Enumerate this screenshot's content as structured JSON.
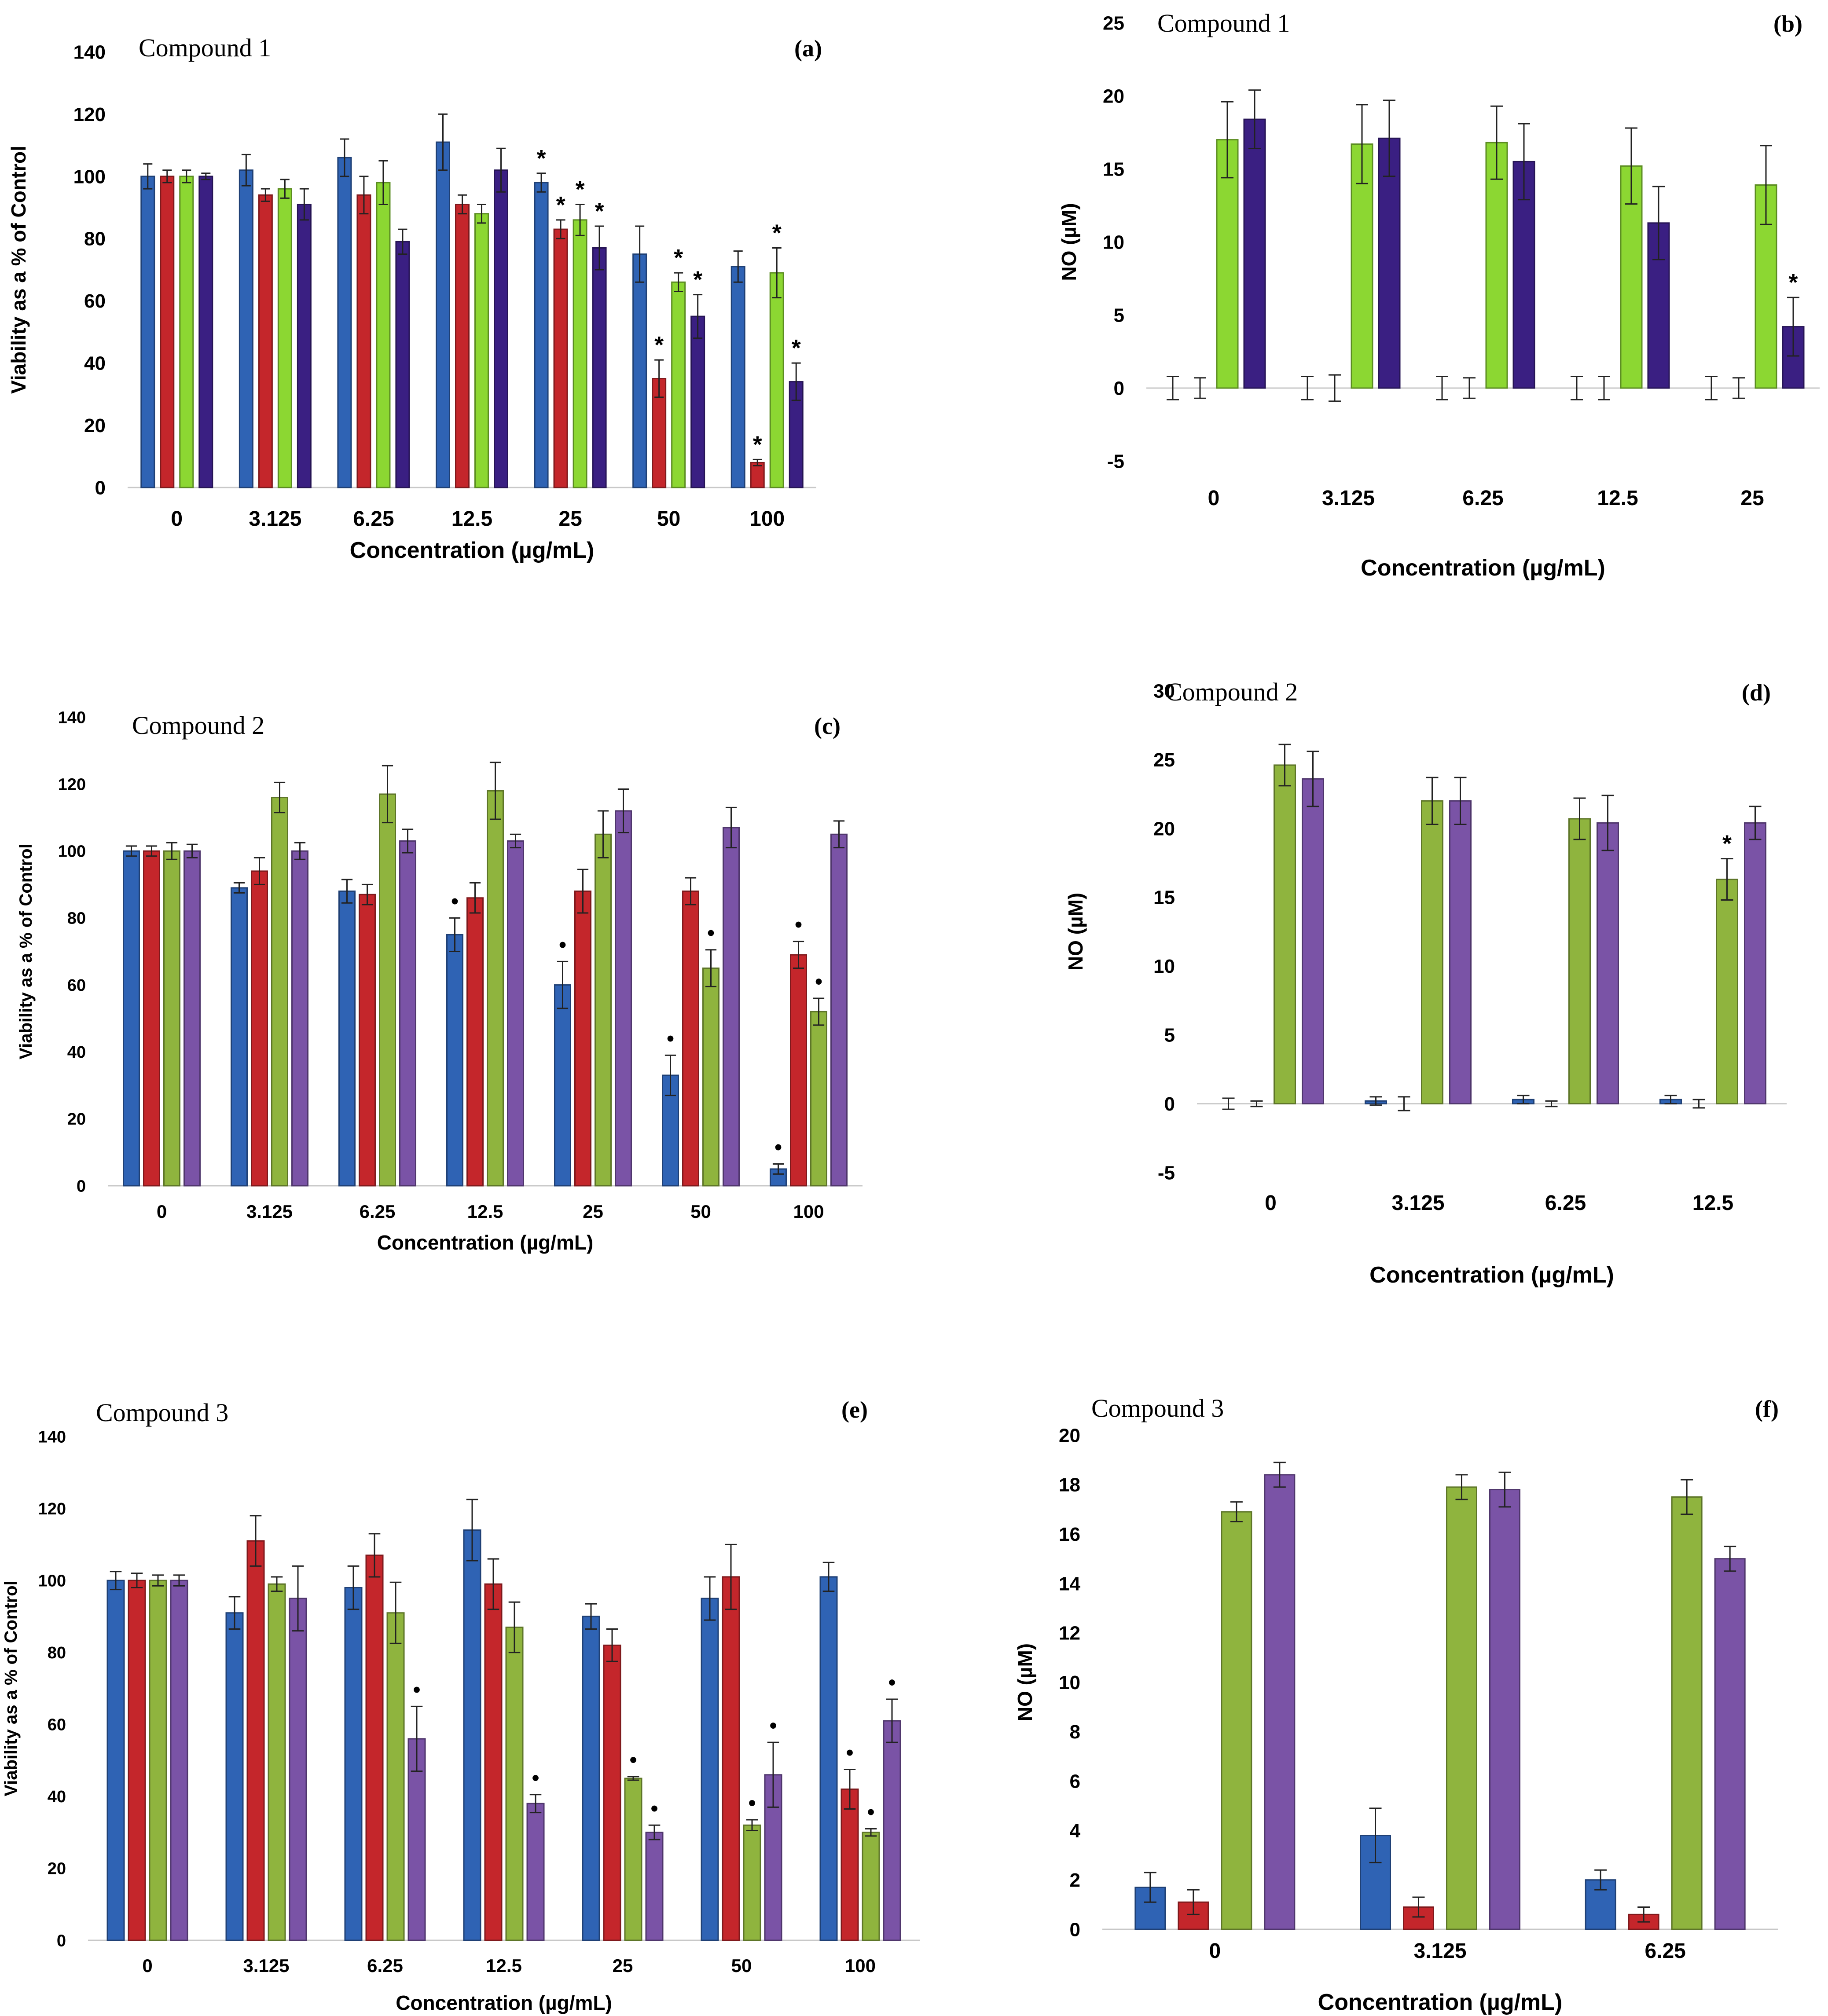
{
  "figure": {
    "colors": {
      "blue": "#2f63b4",
      "red": "#c4262b",
      "green_bright": "#8cd732",
      "green_olive": "#8fb43e",
      "purple_dark": "#3a1f82",
      "purple": "#7a53a6"
    }
  },
  "chart_data": [
    {
      "panel": "a",
      "type": "bar",
      "title": "Compound 1",
      "panel_label": "(a)",
      "xlabel": "Concentration (µg/mL)",
      "ylabel": "Viability as a % of Control",
      "ylim": [
        0,
        140
      ],
      "yticks": [
        "0",
        "20",
        "40",
        "60",
        "80",
        "100",
        "120",
        "140"
      ],
      "categories": [
        "0",
        "3.125",
        "6.25",
        "12.5",
        "25",
        "50",
        "100"
      ],
      "series": [
        {
          "name": "blue",
          "color": "#2f63b4",
          "values": [
            100,
            102,
            106,
            111,
            98,
            75,
            71
          ],
          "errors": [
            4,
            5,
            6,
            9,
            3,
            9,
            5
          ],
          "sig": [
            "",
            "",
            "",
            "",
            "*",
            "",
            ""
          ]
        },
        {
          "name": "red",
          "color": "#c4262b",
          "values": [
            100,
            94,
            94,
            91,
            83,
            35,
            8
          ],
          "errors": [
            2,
            2,
            6,
            3,
            3,
            6,
            1
          ],
          "sig": [
            "",
            "",
            "",
            "",
            "*",
            "*",
            "*"
          ]
        },
        {
          "name": "green",
          "color": "#8cd732",
          "values": [
            100,
            96,
            98,
            88,
            86,
            66,
            69
          ],
          "errors": [
            2,
            3,
            7,
            3,
            5,
            3,
            8
          ],
          "sig": [
            "",
            "",
            "",
            "",
            "*",
            "*",
            "*"
          ]
        },
        {
          "name": "purple",
          "color": "#3a1f82",
          "values": [
            100,
            91,
            79,
            102,
            77,
            55,
            34
          ],
          "errors": [
            1,
            5,
            4,
            7,
            7,
            7,
            6
          ],
          "sig": [
            "",
            "",
            "",
            "",
            "*",
            "*",
            "*"
          ]
        }
      ]
    },
    {
      "panel": "b",
      "type": "bar",
      "title": "Compound 1",
      "panel_label": "(b)",
      "xlabel": "Concentration (µg/mL)",
      "ylabel": "NO (µM)",
      "ylim": [
        -5,
        25
      ],
      "yticks": [
        "-5",
        "0",
        "5",
        "10",
        "15",
        "20",
        "25"
      ],
      "categories": [
        "0",
        "3.125",
        "6.25",
        "12.5",
        "25"
      ],
      "series": [
        {
          "name": "blue",
          "color": "#2f63b4",
          "values": [
            0,
            0,
            0,
            0,
            0
          ],
          "errors": [
            0.8,
            0.8,
            0.8,
            0.8,
            0.8
          ],
          "sig": [
            "",
            "",
            "",
            "",
            ""
          ]
        },
        {
          "name": "red",
          "color": "#c4262b",
          "values": [
            0,
            0,
            0,
            0,
            0
          ],
          "errors": [
            0.7,
            0.9,
            0.7,
            0.8,
            0.7
          ],
          "sig": [
            "",
            "",
            "",
            "",
            ""
          ]
        },
        {
          "name": "green",
          "color": "#8cd732",
          "values": [
            17,
            16.7,
            16.8,
            15.2,
            13.9
          ],
          "errors": [
            2.6,
            2.7,
            2.5,
            2.6,
            2.7
          ],
          "sig": [
            "",
            "",
            "",
            "",
            ""
          ]
        },
        {
          "name": "purple",
          "color": "#3a1f82",
          "values": [
            18.4,
            17.1,
            15.5,
            11.3,
            4.2
          ],
          "errors": [
            2,
            2.6,
            2.6,
            2.5,
            2
          ],
          "sig": [
            "",
            "",
            "",
            "",
            "*"
          ]
        }
      ]
    },
    {
      "panel": "c",
      "type": "bar",
      "title": "Compound 2",
      "panel_label": "(c)",
      "xlabel": "Concentration (µg/mL)",
      "ylabel": "Viability as a % of Control",
      "ylim": [
        0,
        140
      ],
      "yticks": [
        "0",
        "20",
        "40",
        "60",
        "80",
        "100",
        "120",
        "140"
      ],
      "categories": [
        "0",
        "3.125",
        "6.25",
        "12.5",
        "25",
        "50",
        "100"
      ],
      "series": [
        {
          "name": "blue",
          "color": "#2f63b4",
          "values": [
            100,
            89,
            88,
            75,
            60,
            33,
            5
          ],
          "errors": [
            1.5,
            1.5,
            3.5,
            5,
            7,
            6,
            1.5
          ],
          "sig": [
            "",
            "",
            "",
            "•",
            "•",
            "•",
            "•"
          ]
        },
        {
          "name": "red",
          "color": "#c4262b",
          "values": [
            100,
            94,
            87,
            86,
            88,
            88,
            69
          ],
          "errors": [
            1.5,
            4,
            3,
            4.5,
            6.5,
            4,
            4
          ],
          "sig": [
            "",
            "",
            "",
            "",
            "",
            "",
            "•"
          ]
        },
        {
          "name": "green",
          "color": "#8fb43e",
          "values": [
            100,
            116,
            117,
            118,
            105,
            65,
            52
          ],
          "errors": [
            2.5,
            4.5,
            8.5,
            8.5,
            7,
            5.5,
            4
          ],
          "sig": [
            "",
            "",
            "",
            "",
            "",
            "•",
            "•"
          ]
        },
        {
          "name": "purple",
          "color": "#7a53a6",
          "values": [
            100,
            100,
            103,
            103,
            112,
            107,
            105
          ],
          "errors": [
            2,
            2.5,
            3.5,
            2,
            6.5,
            6,
            4
          ],
          "sig": [
            "",
            "",
            "",
            "",
            "",
            "",
            ""
          ]
        }
      ]
    },
    {
      "panel": "d",
      "type": "bar",
      "title": "Compound 2",
      "panel_label": "(d)",
      "xlabel": "Concentration (µg/mL)",
      "ylabel": "NO (µM)",
      "ylim": [
        -5,
        30
      ],
      "yticks": [
        "-5",
        "0",
        "5",
        "10",
        "15",
        "20",
        "25",
        "30"
      ],
      "categories": [
        "0",
        "3.125",
        "6.25",
        "12.5"
      ],
      "series": [
        {
          "name": "blue",
          "color": "#2f63b4",
          "values": [
            0,
            0.2,
            0.3,
            0.3
          ],
          "errors": [
            0.4,
            0.3,
            0.3,
            0.3
          ],
          "sig": [
            "",
            "",
            "",
            ""
          ]
        },
        {
          "name": "red",
          "color": "#c4262b",
          "values": [
            0,
            0,
            0,
            0
          ],
          "errors": [
            0.2,
            0.5,
            0.2,
            0.3
          ],
          "sig": [
            "",
            "",
            "",
            ""
          ]
        },
        {
          "name": "green",
          "color": "#8fb43e",
          "values": [
            24.6,
            22,
            20.7,
            16.3
          ],
          "errors": [
            1.5,
            1.7,
            1.5,
            1.5
          ],
          "sig": [
            "",
            "",
            "",
            "*"
          ]
        },
        {
          "name": "purple",
          "color": "#7a53a6",
          "values": [
            23.6,
            22,
            20.4,
            20.4
          ],
          "errors": [
            2,
            1.7,
            2,
            1.2
          ],
          "sig": [
            "",
            "",
            "",
            ""
          ]
        }
      ]
    },
    {
      "panel": "e",
      "type": "bar",
      "title": "Compound 3",
      "panel_label": "(e)",
      "xlabel": "Concentration (µg/mL)",
      "ylabel": "Viability as a % of Control",
      "ylim": [
        0,
        140
      ],
      "yticks": [
        "0",
        "20",
        "40",
        "60",
        "80",
        "100",
        "120",
        "140"
      ],
      "categories": [
        "0",
        "3.125",
        "6.25",
        "12.5",
        "25",
        "50",
        "100"
      ],
      "series": [
        {
          "name": "blue",
          "color": "#2f63b4",
          "values": [
            100,
            91,
            98,
            114,
            90,
            95,
            101
          ],
          "errors": [
            2.5,
            4.5,
            6,
            8.5,
            3.5,
            6,
            4
          ],
          "sig": [
            "",
            "",
            "",
            "",
            "",
            "",
            ""
          ]
        },
        {
          "name": "red",
          "color": "#c4262b",
          "values": [
            100,
            111,
            107,
            99,
            82,
            101,
            42
          ],
          "errors": [
            2,
            7,
            6,
            7,
            4.5,
            9,
            5.5
          ],
          "sig": [
            "",
            "",
            "",
            "",
            "",
            "",
            "•"
          ]
        },
        {
          "name": "green",
          "color": "#8fb43e",
          "values": [
            100,
            99,
            91,
            87,
            45,
            32,
            30
          ],
          "errors": [
            1.5,
            2,
            8.5,
            7,
            0.5,
            1.5,
            1
          ],
          "sig": [
            "",
            "",
            "",
            "",
            "•",
            "•",
            "•"
          ]
        },
        {
          "name": "purple",
          "color": "#7a53a6",
          "values": [
            100,
            95,
            56,
            38,
            30,
            46,
            61
          ],
          "errors": [
            1.5,
            9,
            9,
            2.5,
            2,
            9,
            6
          ],
          "sig": [
            "",
            "",
            "•",
            "•",
            "•",
            "•",
            "•"
          ]
        }
      ]
    },
    {
      "panel": "f",
      "type": "bar",
      "title": "Compound 3",
      "panel_label": "(f)",
      "xlabel": "Concentration (µg/mL)",
      "ylabel": "NO (µM)",
      "ylim": [
        0,
        20
      ],
      "yticks": [
        "0",
        "2",
        "4",
        "6",
        "8",
        "10",
        "12",
        "14",
        "16",
        "18",
        "20"
      ],
      "categories": [
        "0",
        "3.125",
        "6.25"
      ],
      "series": [
        {
          "name": "blue",
          "color": "#2f63b4",
          "values": [
            1.7,
            3.8,
            2
          ],
          "errors": [
            0.6,
            1.1,
            0.4
          ],
          "sig": [
            "",
            "",
            ""
          ]
        },
        {
          "name": "red",
          "color": "#c4262b",
          "values": [
            1.1,
            0.9,
            0.6
          ],
          "errors": [
            0.5,
            0.4,
            0.3
          ],
          "sig": [
            "",
            "",
            ""
          ]
        },
        {
          "name": "green",
          "color": "#8fb43e",
          "values": [
            16.9,
            17.9,
            17.5
          ],
          "errors": [
            0.4,
            0.5,
            0.7
          ],
          "sig": [
            "",
            "",
            ""
          ]
        },
        {
          "name": "purple",
          "color": "#7a53a6",
          "values": [
            18.4,
            17.8,
            15
          ],
          "errors": [
            0.5,
            0.7,
            0.5
          ],
          "sig": [
            "",
            "",
            ""
          ]
        }
      ]
    }
  ]
}
